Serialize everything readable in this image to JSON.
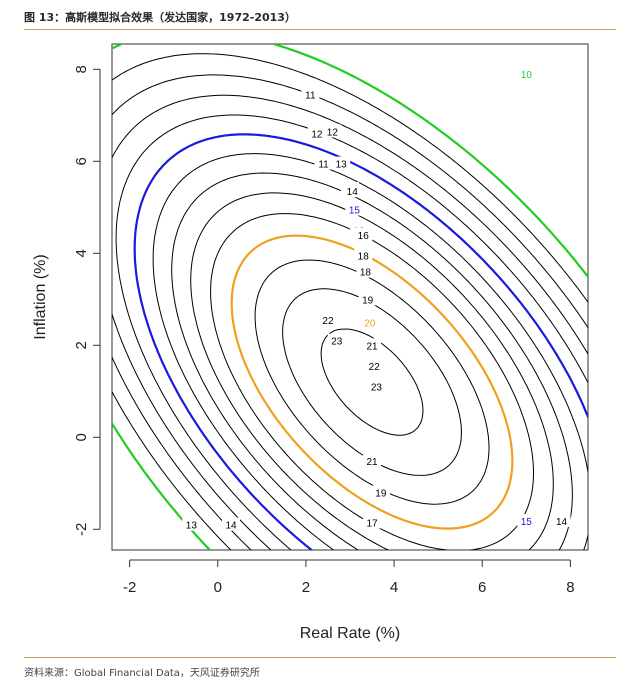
{
  "header": {
    "title": "图 13：高斯模型拟合效果（发达国家，1972-2013）"
  },
  "footer": {
    "source": "资料来源：Global Financial Data，天风证券研究所"
  },
  "chart_data": {
    "type": "contour",
    "title": "高斯模型拟合效果（发达国家，1972-2013）",
    "xlabel": "Real Rate (%)",
    "ylabel": "Inflation (%)",
    "xlim": [
      -2.4,
      8.4
    ],
    "ylim": [
      -2.45,
      8.55
    ],
    "xticks": [
      -2,
      0,
      2,
      4,
      6,
      8
    ],
    "yticks": [
      -2,
      0,
      2,
      4,
      6,
      8
    ],
    "xtick_labels": [
      "-2",
      "0",
      "2",
      "4",
      "6",
      "8"
    ],
    "ytick_labels": [
      "-2",
      "0",
      "2",
      "4",
      "6",
      "8"
    ],
    "surface": {
      "form": "gaussian",
      "peak_location": [
        3.5,
        1.2
      ],
      "peak_value_approx": 23.5
    },
    "contours": [
      {
        "level": "10",
        "color": "#22cc22",
        "label_at": [
          7.0,
          7.9
        ]
      },
      {
        "level": "11",
        "color": "#000000",
        "label_at": [
          2.1,
          7.45
        ]
      },
      {
        "level": "12",
        "color": "#000000",
        "label_at": [
          2.6,
          6.65
        ]
      },
      {
        "level": "13",
        "color": "#000000",
        "label_at": [
          2.8,
          5.95
        ]
      },
      {
        "level": "14",
        "color": "#000000",
        "label_at": [
          3.0,
          5.4
        ]
      },
      {
        "level": "15",
        "color": "#1a1adc",
        "label_at": [
          3.1,
          4.95
        ]
      },
      {
        "level": "16",
        "color": "#000000",
        "label_at": [
          3.2,
          4.5
        ]
      },
      {
        "level": "17",
        "color": "#000000",
        "label_at": [
          3.3,
          4.0
        ]
      },
      {
        "level": "18",
        "color": "#000000",
        "label_at": [
          3.35,
          3.6
        ]
      },
      {
        "level": "19",
        "color": "#000000",
        "label_at": [
          3.4,
          3.0
        ]
      },
      {
        "level": "20",
        "color": "#f0a020",
        "label_at": [
          3.45,
          2.5
        ]
      },
      {
        "level": "21",
        "color": "#000000",
        "label_at": [
          3.5,
          2.0
        ]
      },
      {
        "level": "22",
        "color": "#000000",
        "label_at": [
          3.55,
          1.55
        ]
      },
      {
        "level": "23",
        "color": "#000000",
        "label_at": [
          3.6,
          1.1
        ]
      }
    ],
    "extra_labels": [
      {
        "text": "12",
        "at": [
          2.25,
          6.6
        ]
      },
      {
        "text": "11",
        "at": [
          2.4,
          5.95
        ]
      },
      {
        "text": "14",
        "at": [
          3.05,
          5.35
        ]
      },
      {
        "text": "16",
        "at": [
          3.3,
          4.4
        ]
      },
      {
        "text": "18",
        "at": [
          3.3,
          3.95
        ]
      },
      {
        "text": "22",
        "at": [
          2.5,
          2.55
        ]
      },
      {
        "text": "23",
        "at": [
          2.7,
          2.1
        ]
      },
      {
        "text": "21",
        "at": [
          3.5,
          -0.52
        ]
      },
      {
        "text": "19",
        "at": [
          3.7,
          -1.2
        ]
      },
      {
        "text": "17",
        "at": [
          3.5,
          -1.85
        ]
      },
      {
        "text": "15",
        "at": [
          7.0,
          -1.82
        ]
      },
      {
        "text": "14",
        "at": [
          7.8,
          -1.82
        ]
      },
      {
        "text": "13",
        "at": [
          -0.6,
          -1.9
        ]
      },
      {
        "text": "14",
        "at": [
          0.3,
          -1.9
        ]
      }
    ]
  }
}
